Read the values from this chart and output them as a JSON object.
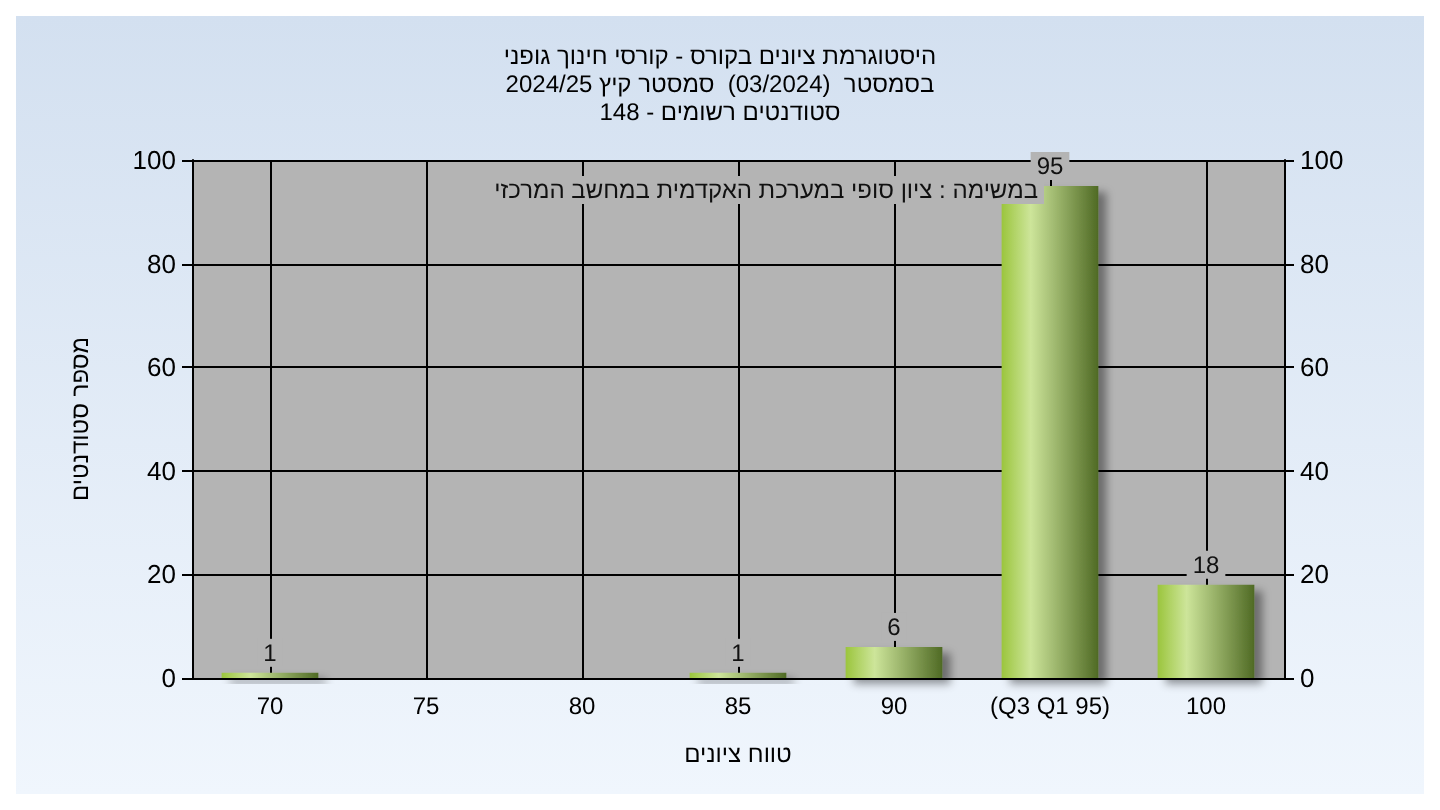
{
  "chart_data": {
    "type": "bar",
    "title": "היסטוגרמת ציונים בקורס - קורסי חינוך גופני\nבסמסטר  (03/2024)  סמסטר קיץ 2024/25\nסטודנטים רשומים - 148",
    "xlabel": "טווח ציונים",
    "ylabel": "מספר סטודנטים",
    "annotations": [
      "במשימה : ציון סופי במערכת האקדמית במחשב המרכזי"
    ],
    "categories": [
      "70",
      "75",
      "80",
      "85",
      "90",
      "(Q3 Q1 95)",
      "100"
    ],
    "values": [
      1,
      0,
      0,
      1,
      6,
      95,
      18
    ],
    "value_labels": [
      "1",
      null,
      null,
      "1",
      "6",
      "95",
      "18"
    ],
    "color": "#9bc53d",
    "ylim": [
      0,
      100
    ],
    "yticks": [
      0,
      20,
      40,
      60,
      80,
      100
    ],
    "y2lim": [
      0,
      100
    ],
    "y2ticks": [
      0,
      20,
      40,
      60,
      80,
      100
    ],
    "grid": true
  }
}
